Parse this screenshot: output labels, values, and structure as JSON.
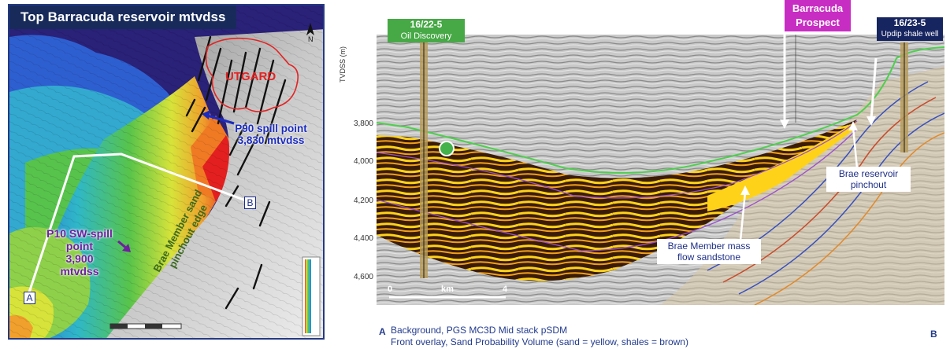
{
  "map": {
    "title": "Top Barracuda reservoir mtvdss",
    "north_label": "N",
    "utgard_label": "UTGARD",
    "p90_line1": "P90 spill point",
    "p90_line2": "3,830 mtvdss",
    "p10_line1": "P10 SW-spill",
    "p10_line2": "point",
    "p10_line3": "3,900",
    "p10_line4": "mtvdss",
    "brae_line1": "Brae Member sand",
    "brae_line2": "pinchout edge",
    "point_a": "A",
    "point_b": "B"
  },
  "section": {
    "well_left_id": "16/22-5",
    "well_left_desc": "Oil Discovery",
    "prospect_line1": "Barracuda",
    "prospect_line2": "Prospect",
    "well_right_id": "16/23-5",
    "well_right_desc": "Updip shale well",
    "y_axis_label": "TVDSS (m)",
    "y_ticks": [
      "3,800",
      "4,000",
      "4,200",
      "4,400",
      "4,600"
    ],
    "callout_reservoir_1": "Brae reservoir",
    "callout_reservoir_2": "pinchout",
    "callout_mass_1": "Brae Member mass",
    "callout_mass_2": "flow sandstone",
    "scale_start": "0",
    "scale_unit": "km",
    "scale_end": "4",
    "end_a": "A",
    "end_b": "B",
    "caption_1": "Background, PGS MC3D Mid stack pSDM",
    "caption_2": "Front overlay, Sand Probability Volume (sand = yellow, shales = brown)"
  },
  "colors": {
    "title_bg": "#172a5a",
    "deep_purple": "#2a2178",
    "sand_yellow": "#ffd21a",
    "shale_brown": "#3a1c06",
    "prospect_magenta": "#c82dc3",
    "discovery_green": "#47a846"
  }
}
